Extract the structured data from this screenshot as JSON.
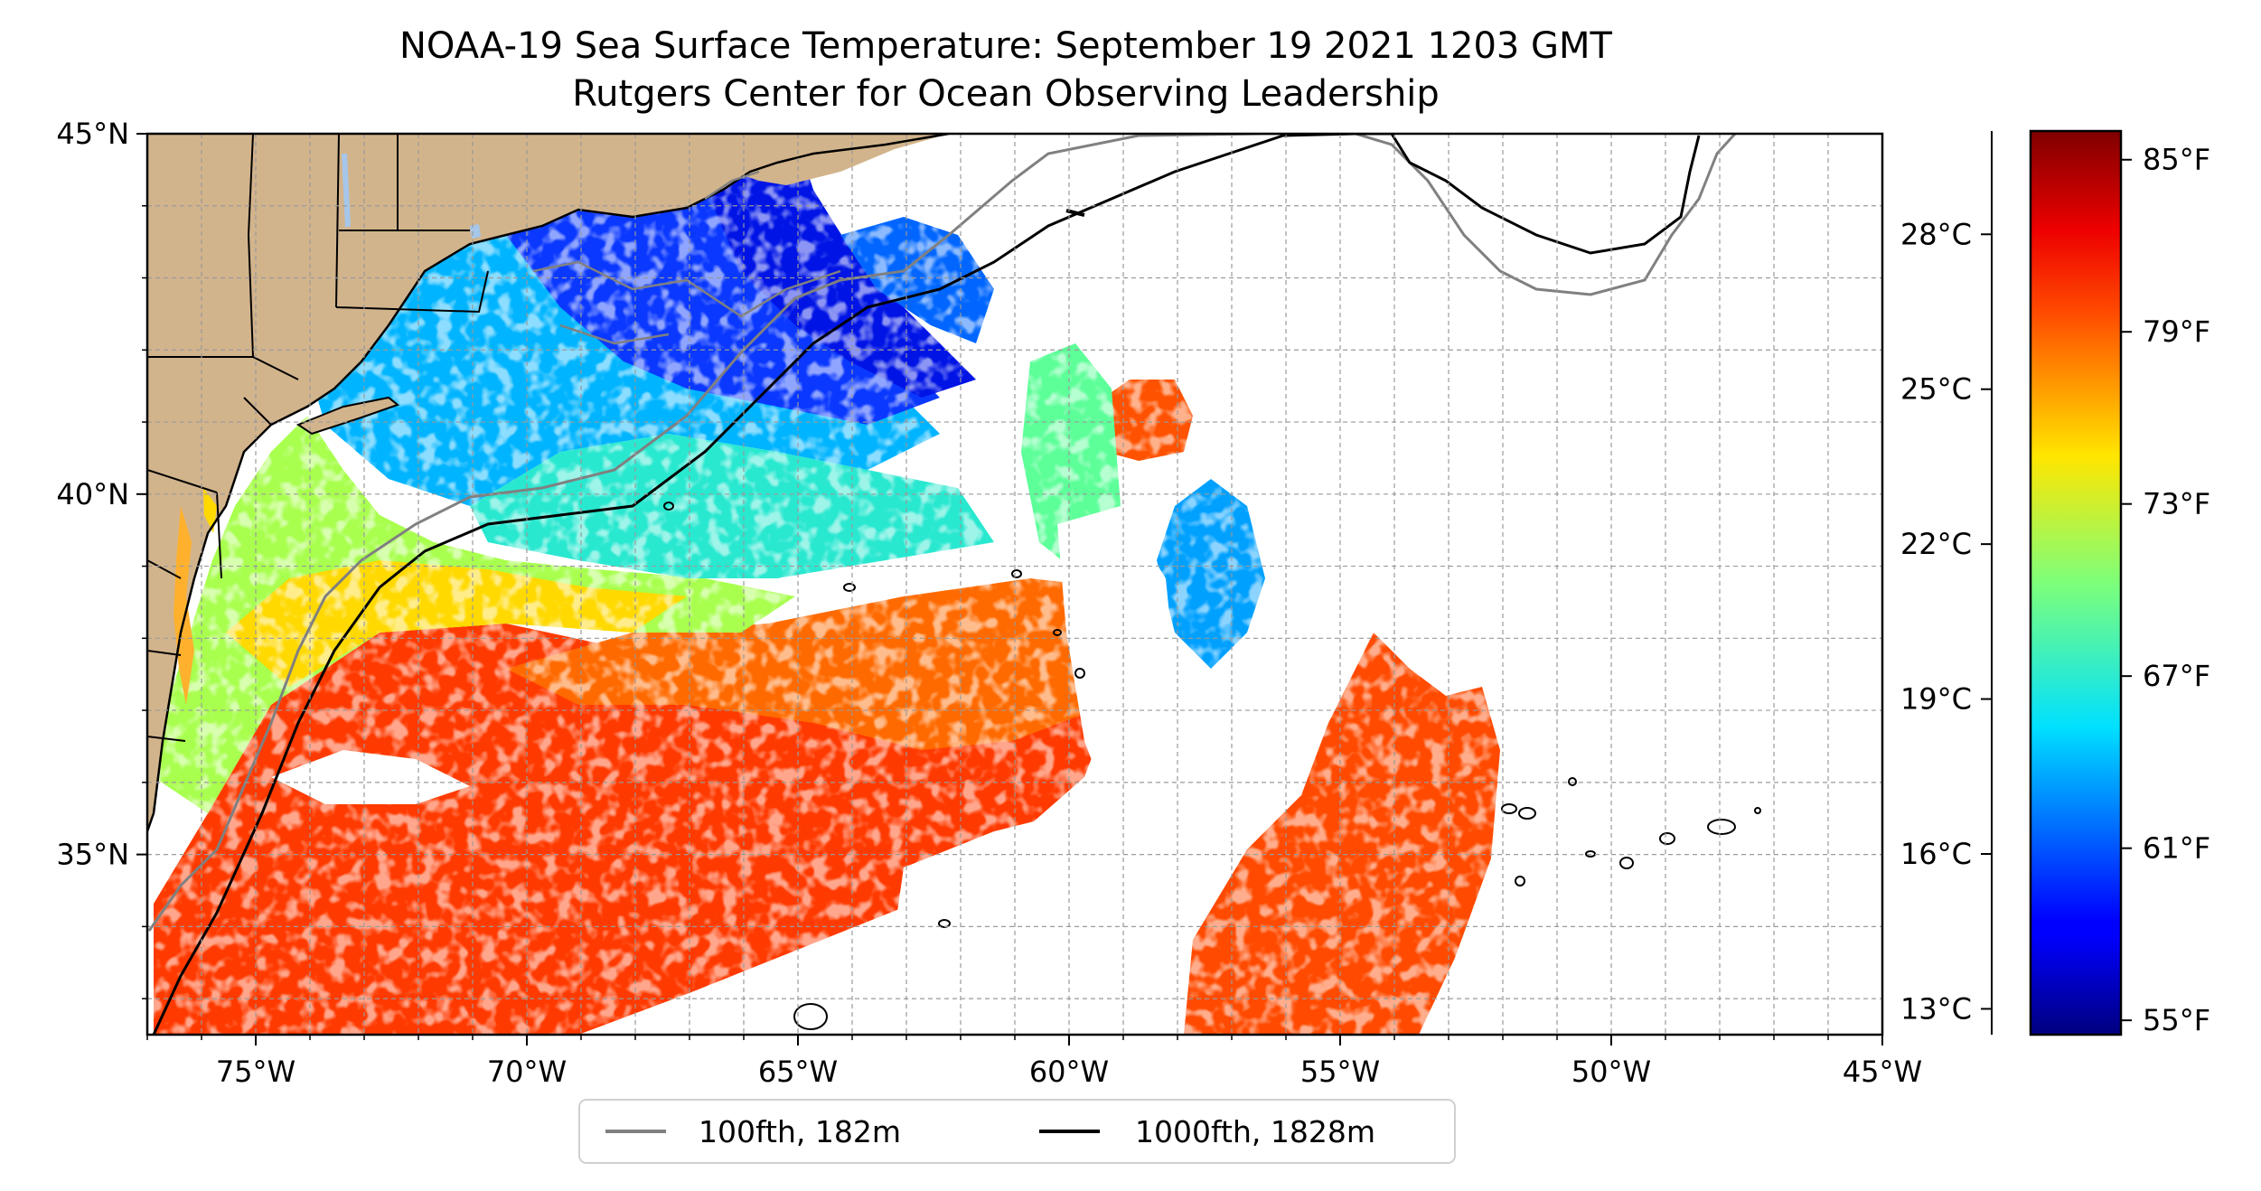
{
  "title_line1": "NOAA-19 Sea Surface Temperature: September 19 2021 1203 GMT",
  "title_line2": "Rutgers Center for Ocean Observing Leadership",
  "map": {
    "lon_range": [
      -77,
      -45
    ],
    "lat_range": [
      32.5,
      45
    ],
    "x_ticks": [
      {
        "lon": -75,
        "label": "75°W"
      },
      {
        "lon": -70,
        "label": "70°W"
      },
      {
        "lon": -65,
        "label": "65°W"
      },
      {
        "lon": -60,
        "label": "60°W"
      },
      {
        "lon": -55,
        "label": "55°W"
      },
      {
        "lon": -50,
        "label": "50°W"
      },
      {
        "lon": -45,
        "label": "45°W"
      }
    ],
    "y_ticks": [
      {
        "lat": 45,
        "label": "45°N"
      },
      {
        "lat": 40,
        "label": "40°N"
      },
      {
        "lat": 35,
        "label": "35°N"
      }
    ],
    "grid": true,
    "colors": {
      "land": "#d2b48c",
      "coast": "#000000",
      "lakes": "#a6c6ea",
      "missing": "#ffffff"
    }
  },
  "legend": {
    "placement": "bottom-center",
    "items": [
      {
        "label": "100fth, 182m",
        "color": "#808080"
      },
      {
        "label": "1000fth, 1828m",
        "color": "#000000"
      }
    ]
  },
  "colorbar": {
    "colormap": "jet",
    "range_f": [
      54.5,
      86
    ],
    "celsius_ticks": [
      {
        "c": 28,
        "label": "28°C"
      },
      {
        "c": 25,
        "label": "25°C"
      },
      {
        "c": 22,
        "label": "22°C"
      },
      {
        "c": 19,
        "label": "19°C"
      },
      {
        "c": 16,
        "label": "16°C"
      },
      {
        "c": 13,
        "label": "13°C"
      }
    ],
    "fahrenheit_ticks": [
      {
        "f": 85,
        "label": "85°F"
      },
      {
        "f": 79,
        "label": "79°F"
      },
      {
        "f": 73,
        "label": "73°F"
      },
      {
        "f": 67,
        "label": "67°F"
      },
      {
        "f": 61,
        "label": "61°F"
      },
      {
        "f": 55,
        "label": "55°F"
      }
    ]
  }
}
